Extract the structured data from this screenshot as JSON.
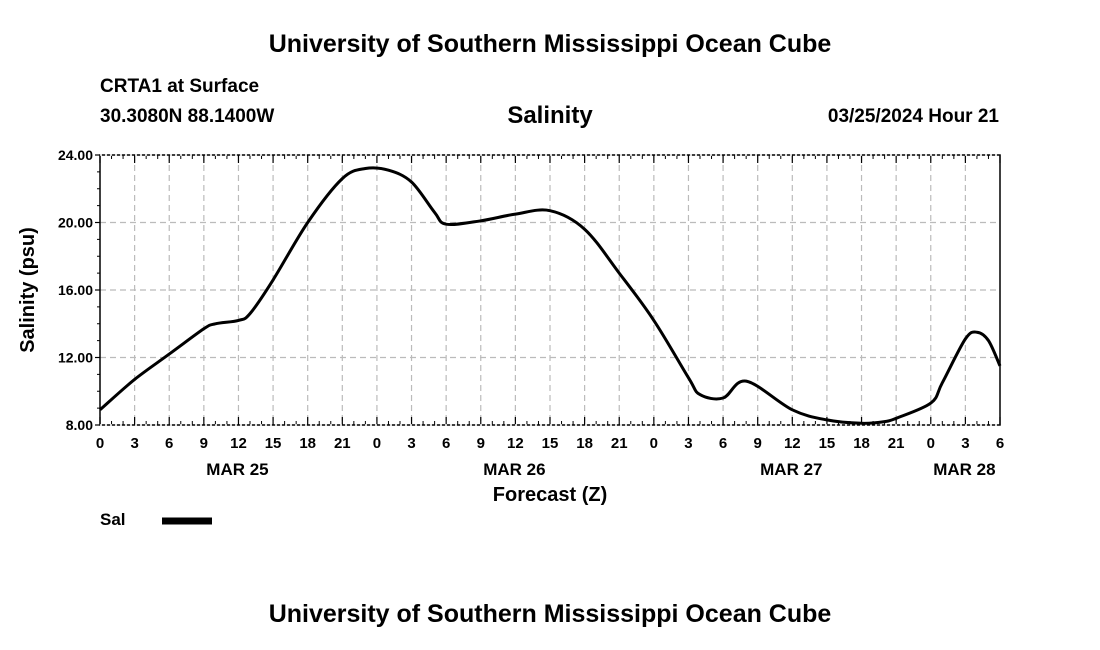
{
  "header": {
    "title": "University of Southern Mississippi Ocean Cube",
    "station": "CRTA1 at Surface",
    "coordinates": "30.3080N  88.1400W",
    "variable": "Salinity",
    "issued": "03/25/2024 Hour 21"
  },
  "footer": {
    "title": "University of Southern Mississippi Ocean Cube"
  },
  "chart_data": {
    "type": "line",
    "title": "Salinity",
    "xlabel": "Forecast (Z)",
    "ylabel": "Salinity (psu)",
    "ylim": [
      8,
      24
    ],
    "xlim": [
      0,
      78
    ],
    "grid": true,
    "y_ticks": [
      "8.00",
      "12.00",
      "16.00",
      "20.00",
      "24.00"
    ],
    "y_tick_values": [
      8,
      12,
      16,
      20,
      24
    ],
    "x_tick_labels": [
      "0",
      "3",
      "6",
      "9",
      "12",
      "15",
      "18",
      "21",
      "0",
      "3",
      "6",
      "9",
      "12",
      "15",
      "18",
      "21",
      "0",
      "3",
      "6",
      "9",
      "12",
      "15",
      "18",
      "21",
      "0",
      "3",
      "6"
    ],
    "x_tick_hours": [
      0,
      3,
      6,
      9,
      12,
      15,
      18,
      21,
      24,
      27,
      30,
      33,
      36,
      39,
      42,
      45,
      48,
      51,
      54,
      57,
      60,
      63,
      66,
      69,
      72,
      75,
      78
    ],
    "date_labels": [
      {
        "label": "MAR 25",
        "hour": 12
      },
      {
        "label": "MAR 26",
        "hour": 36
      },
      {
        "label": "MAR 27",
        "hour": 60
      },
      {
        "label": "MAR 28",
        "hour": 75
      }
    ],
    "legend": {
      "label": "Sal",
      "position": "bottom-left"
    },
    "series": [
      {
        "name": "Sal",
        "x": [
          0,
          3,
          6,
          9,
          10,
          12,
          13,
          15,
          18,
          21,
          23,
          25,
          27,
          29,
          30,
          33,
          36,
          39,
          42,
          45,
          48,
          51,
          52,
          54,
          56,
          60,
          63,
          66,
          68,
          69,
          72,
          73,
          75,
          76,
          77,
          78
        ],
        "values": [
          8.9,
          10.7,
          12.2,
          13.7,
          14.0,
          14.2,
          14.6,
          16.6,
          20.0,
          22.6,
          23.2,
          23.1,
          22.4,
          20.6,
          19.9,
          20.1,
          20.5,
          20.7,
          19.6,
          17.0,
          14.2,
          10.8,
          9.8,
          9.6,
          10.6,
          8.9,
          8.3,
          8.1,
          8.2,
          8.4,
          9.3,
          10.5,
          13.1,
          13.5,
          13.0,
          11.5
        ]
      }
    ]
  }
}
